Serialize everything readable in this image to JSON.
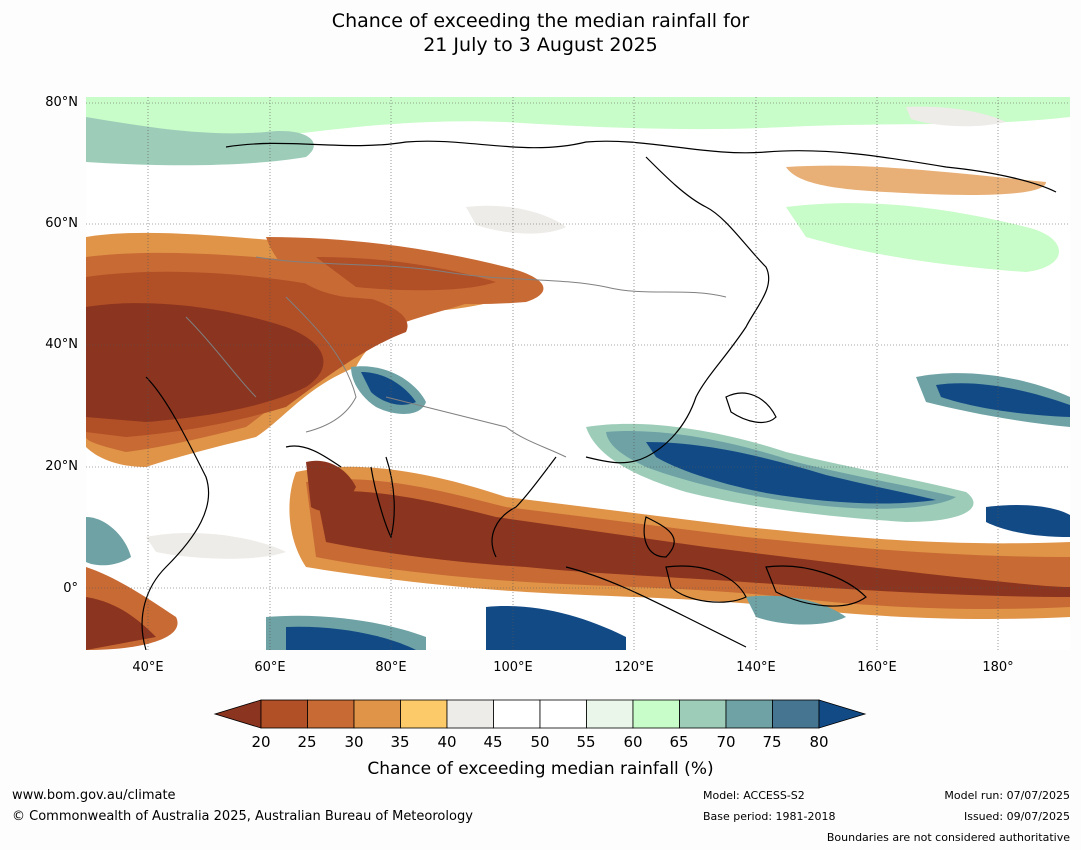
{
  "title": {
    "line1": "Chance of exceeding the median rainfall for",
    "line2": "21 July to 3 August 2025"
  },
  "axes": {
    "lat_labels": [
      "80°N",
      "60°N",
      "40°N",
      "20°N",
      "0°"
    ],
    "lon_labels": [
      "40°E",
      "60°E",
      "80°E",
      "100°E",
      "120°E",
      "140°E",
      "160°E",
      "180°"
    ]
  },
  "colorbar": {
    "ticks": [
      "20",
      "25",
      "30",
      "35",
      "40",
      "45",
      "50",
      "55",
      "60",
      "65",
      "70",
      "75",
      "80"
    ],
    "colors": [
      "#8b341f",
      "#b14f26",
      "#c86a34",
      "#e09448",
      "#fdca6a",
      "#eeece8",
      "#ffffff",
      "#ffffff",
      "#e9f6e9",
      "#c8fcc8",
      "#9dcdb9",
      "#6ea2a5",
      "#467592",
      "#124a86"
    ],
    "title": "Chance of exceeding median rainfall (%)"
  },
  "footer": {
    "website": "www.bom.gov.au/climate",
    "copyright": "© Commonwealth of Australia 2025, Australian Bureau of Meteorology",
    "model": "Model: ACCESS-S2",
    "base_period": "Base period: 1981-2018",
    "model_run": "Model run: 07/07/2025",
    "issued": "Issued: 09/07/2025",
    "disclaimer": "Boundaries are not considered authoritative"
  }
}
